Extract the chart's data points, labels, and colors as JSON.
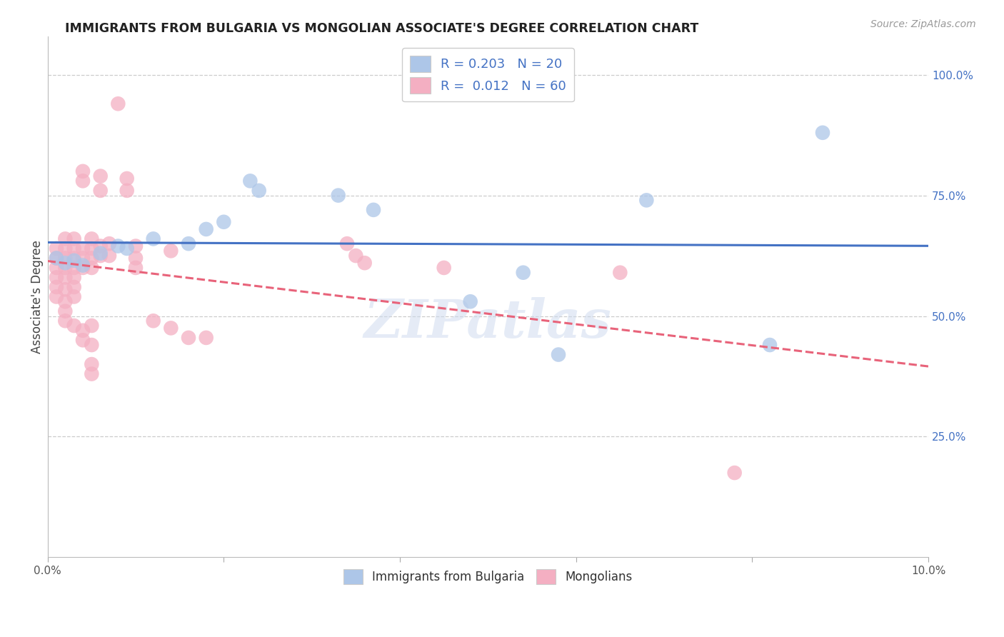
{
  "title": "IMMIGRANTS FROM BULGARIA VS MONGOLIAN ASSOCIATE'S DEGREE CORRELATION CHART",
  "source": "Source: ZipAtlas.com",
  "ylabel": "Associate's Degree",
  "xlim": [
    0.0,
    0.1
  ],
  "ylim": [
    0.0,
    1.08
  ],
  "watermark": "ZIPatlas",
  "blue_color": "#adc6e8",
  "blue_line_color": "#4472c4",
  "pink_color": "#f4afc2",
  "pink_line_color": "#e8637a",
  "blue_scatter": [
    [
      0.001,
      0.62
    ],
    [
      0.002,
      0.61
    ],
    [
      0.003,
      0.615
    ],
    [
      0.004,
      0.605
    ],
    [
      0.006,
      0.63
    ],
    [
      0.008,
      0.645
    ],
    [
      0.009,
      0.64
    ],
    [
      0.012,
      0.66
    ],
    [
      0.016,
      0.65
    ],
    [
      0.018,
      0.68
    ],
    [
      0.02,
      0.695
    ],
    [
      0.023,
      0.78
    ],
    [
      0.024,
      0.76
    ],
    [
      0.033,
      0.75
    ],
    [
      0.037,
      0.72
    ],
    [
      0.048,
      0.53
    ],
    [
      0.054,
      0.59
    ],
    [
      0.058,
      0.42
    ],
    [
      0.068,
      0.74
    ],
    [
      0.082,
      0.44
    ],
    [
      0.088,
      0.88
    ]
  ],
  "pink_scatter": [
    [
      0.001,
      0.64
    ],
    [
      0.001,
      0.62
    ],
    [
      0.001,
      0.6
    ],
    [
      0.001,
      0.58
    ],
    [
      0.001,
      0.56
    ],
    [
      0.001,
      0.54
    ],
    [
      0.002,
      0.66
    ],
    [
      0.002,
      0.64
    ],
    [
      0.002,
      0.62
    ],
    [
      0.002,
      0.6
    ],
    [
      0.002,
      0.58
    ],
    [
      0.002,
      0.555
    ],
    [
      0.002,
      0.53
    ],
    [
      0.002,
      0.51
    ],
    [
      0.002,
      0.49
    ],
    [
      0.003,
      0.66
    ],
    [
      0.003,
      0.64
    ],
    [
      0.003,
      0.62
    ],
    [
      0.003,
      0.6
    ],
    [
      0.003,
      0.58
    ],
    [
      0.003,
      0.56
    ],
    [
      0.003,
      0.54
    ],
    [
      0.003,
      0.48
    ],
    [
      0.004,
      0.8
    ],
    [
      0.004,
      0.78
    ],
    [
      0.004,
      0.64
    ],
    [
      0.004,
      0.62
    ],
    [
      0.004,
      0.6
    ],
    [
      0.004,
      0.47
    ],
    [
      0.004,
      0.45
    ],
    [
      0.005,
      0.66
    ],
    [
      0.005,
      0.64
    ],
    [
      0.005,
      0.62
    ],
    [
      0.005,
      0.6
    ],
    [
      0.005,
      0.48
    ],
    [
      0.005,
      0.44
    ],
    [
      0.005,
      0.4
    ],
    [
      0.005,
      0.38
    ],
    [
      0.006,
      0.79
    ],
    [
      0.006,
      0.76
    ],
    [
      0.006,
      0.645
    ],
    [
      0.006,
      0.625
    ],
    [
      0.007,
      0.65
    ],
    [
      0.007,
      0.625
    ],
    [
      0.008,
      0.94
    ],
    [
      0.009,
      0.785
    ],
    [
      0.009,
      0.76
    ],
    [
      0.01,
      0.645
    ],
    [
      0.01,
      0.62
    ],
    [
      0.01,
      0.6
    ],
    [
      0.012,
      0.49
    ],
    [
      0.014,
      0.635
    ],
    [
      0.014,
      0.475
    ],
    [
      0.016,
      0.455
    ],
    [
      0.018,
      0.455
    ],
    [
      0.034,
      0.65
    ],
    [
      0.035,
      0.625
    ],
    [
      0.036,
      0.61
    ],
    [
      0.045,
      0.6
    ],
    [
      0.065,
      0.59
    ],
    [
      0.078,
      0.175
    ]
  ]
}
